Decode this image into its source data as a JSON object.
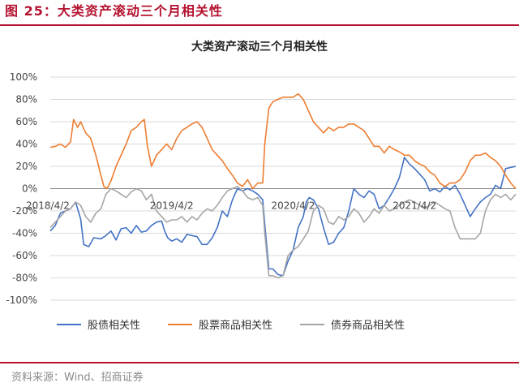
{
  "figure": {
    "title": "图 25：大类资产滚动三个月相关性",
    "source": "资料来源：Wind、招商证券",
    "accent_color": "#b5122f"
  },
  "chart_data": {
    "type": "line",
    "title": "大类资产滚动三个月相关性",
    "xlabel": "",
    "ylabel": "",
    "x_tick_labels": [
      "2018/4/2",
      "2019/4/2",
      "2020/4/2",
      "2021/4/2"
    ],
    "y_tick_labels": [
      "100%",
      "80%",
      "60%",
      "40%",
      "20%",
      "0%",
      "-20%",
      "-40%",
      "-60%",
      "-80%",
      "-100%"
    ],
    "ylim": [
      -1.0,
      1.0
    ],
    "x_unit": "months since 2018/4/2",
    "xlim": [
      0,
      46
    ],
    "grid": "horizontal",
    "legend_position": "bottom",
    "series": [
      {
        "name": "股债相关性",
        "color": "#4472c4",
        "points": [
          [
            0,
            -0.38
          ],
          [
            0.5,
            -0.33
          ],
          [
            1,
            -0.22
          ],
          [
            1.5,
            -0.2
          ],
          [
            2,
            -0.18
          ],
          [
            2.5,
            -0.12
          ],
          [
            3,
            -0.27
          ],
          [
            3.3,
            -0.5
          ],
          [
            3.8,
            -0.52
          ],
          [
            4.3,
            -0.44
          ],
          [
            5,
            -0.45
          ],
          [
            5.5,
            -0.42
          ],
          [
            6,
            -0.38
          ],
          [
            6.5,
            -0.46
          ],
          [
            7,
            -0.36
          ],
          [
            7.5,
            -0.35
          ],
          [
            8,
            -0.4
          ],
          [
            8.5,
            -0.33
          ],
          [
            9,
            -0.39
          ],
          [
            9.5,
            -0.38
          ],
          [
            10,
            -0.33
          ],
          [
            10.5,
            -0.3
          ],
          [
            11,
            -0.29
          ],
          [
            11.3,
            -0.38
          ],
          [
            11.6,
            -0.44
          ],
          [
            12,
            -0.47
          ],
          [
            12.5,
            -0.45
          ],
          [
            13,
            -0.48
          ],
          [
            13.5,
            -0.41
          ],
          [
            14,
            -0.42
          ],
          [
            14.5,
            -0.43
          ],
          [
            15,
            -0.5
          ],
          [
            15.5,
            -0.5
          ],
          [
            16,
            -0.44
          ],
          [
            16.5,
            -0.35
          ],
          [
            17,
            -0.2
          ],
          [
            17.5,
            -0.25
          ],
          [
            18,
            -0.1
          ],
          [
            18.5,
            0.0
          ],
          [
            19,
            -0.02
          ],
          [
            19.5,
            0.0
          ],
          [
            20,
            -0.02
          ],
          [
            20.5,
            -0.05
          ],
          [
            21,
            -0.1
          ],
          [
            21.2,
            -0.32
          ],
          [
            21.6,
            -0.72
          ],
          [
            22,
            -0.72
          ],
          [
            22.5,
            -0.77
          ],
          [
            23,
            -0.78
          ],
          [
            23.5,
            -0.65
          ],
          [
            24,
            -0.55
          ],
          [
            24.5,
            -0.35
          ],
          [
            25,
            -0.25
          ],
          [
            25.3,
            -0.12
          ],
          [
            25.6,
            -0.08
          ],
          [
            26,
            -0.1
          ],
          [
            26.5,
            -0.18
          ],
          [
            27,
            -0.35
          ],
          [
            27.5,
            -0.5
          ],
          [
            28,
            -0.48
          ],
          [
            28.5,
            -0.4
          ],
          [
            29,
            -0.35
          ],
          [
            29.5,
            -0.2
          ],
          [
            30,
            0.0
          ],
          [
            30.5,
            -0.05
          ],
          [
            31,
            -0.08
          ],
          [
            31.5,
            -0.02
          ],
          [
            32,
            -0.05
          ],
          [
            32.5,
            -0.18
          ],
          [
            33,
            -0.15
          ],
          [
            33.5,
            -0.08
          ],
          [
            34,
            0.0
          ],
          [
            34.5,
            0.1
          ],
          [
            35,
            0.28
          ],
          [
            35.5,
            0.22
          ],
          [
            36,
            0.18
          ],
          [
            36.5,
            0.13
          ],
          [
            37,
            0.08
          ],
          [
            37.5,
            -0.02
          ],
          [
            38,
            0.0
          ],
          [
            38.5,
            -0.03
          ],
          [
            39,
            0.02
          ],
          [
            39.5,
            -0.01
          ],
          [
            40,
            0.03
          ],
          [
            40.5,
            -0.05
          ],
          [
            41,
            -0.15
          ],
          [
            41.5,
            -0.25
          ],
          [
            42,
            -0.18
          ],
          [
            42.5,
            -0.12
          ],
          [
            43,
            -0.08
          ],
          [
            43.5,
            -0.05
          ],
          [
            44,
            0.03
          ],
          [
            44.5,
            0.0
          ],
          [
            45,
            0.18
          ],
          [
            45.5,
            0.19
          ],
          [
            46,
            0.2
          ]
        ]
      },
      {
        "name": "股票商品相关性",
        "color": "#ed7d31",
        "points": [
          [
            0,
            0.37
          ],
          [
            0.5,
            0.38
          ],
          [
            1,
            0.4
          ],
          [
            1.5,
            0.37
          ],
          [
            2,
            0.42
          ],
          [
            2.3,
            0.62
          ],
          [
            2.7,
            0.55
          ],
          [
            3,
            0.6
          ],
          [
            3.5,
            0.5
          ],
          [
            4,
            0.45
          ],
          [
            4.5,
            0.3
          ],
          [
            5,
            0.12
          ],
          [
            5.3,
            0.02
          ],
          [
            5.6,
            0.0
          ],
          [
            6,
            0.07
          ],
          [
            6.5,
            0.2
          ],
          [
            7,
            0.3
          ],
          [
            7.5,
            0.4
          ],
          [
            8,
            0.52
          ],
          [
            8.5,
            0.55
          ],
          [
            9,
            0.6
          ],
          [
            9.3,
            0.62
          ],
          [
            9.6,
            0.38
          ],
          [
            10,
            0.2
          ],
          [
            10.5,
            0.3
          ],
          [
            11,
            0.35
          ],
          [
            11.5,
            0.4
          ],
          [
            12,
            0.35
          ],
          [
            12.5,
            0.45
          ],
          [
            13,
            0.52
          ],
          [
            13.5,
            0.55
          ],
          [
            14,
            0.58
          ],
          [
            14.5,
            0.6
          ],
          [
            15,
            0.55
          ],
          [
            15.5,
            0.45
          ],
          [
            16,
            0.35
          ],
          [
            16.5,
            0.3
          ],
          [
            17,
            0.25
          ],
          [
            17.5,
            0.18
          ],
          [
            18,
            0.12
          ],
          [
            18.5,
            0.05
          ],
          [
            19,
            0.02
          ],
          [
            19.5,
            0.08
          ],
          [
            20,
            0.0
          ],
          [
            20.5,
            0.05
          ],
          [
            21,
            0.05
          ],
          [
            21.2,
            0.4
          ],
          [
            21.6,
            0.72
          ],
          [
            22,
            0.78
          ],
          [
            22.5,
            0.8
          ],
          [
            23,
            0.82
          ],
          [
            23.5,
            0.82
          ],
          [
            24,
            0.82
          ],
          [
            24.5,
            0.85
          ],
          [
            25,
            0.8
          ],
          [
            25.5,
            0.7
          ],
          [
            26,
            0.6
          ],
          [
            26.5,
            0.55
          ],
          [
            27,
            0.5
          ],
          [
            27.5,
            0.55
          ],
          [
            28,
            0.52
          ],
          [
            28.5,
            0.55
          ],
          [
            29,
            0.55
          ],
          [
            29.5,
            0.58
          ],
          [
            30,
            0.58
          ],
          [
            30.5,
            0.55
          ],
          [
            31,
            0.52
          ],
          [
            31.5,
            0.45
          ],
          [
            32,
            0.38
          ],
          [
            32.5,
            0.38
          ],
          [
            33,
            0.32
          ],
          [
            33.5,
            0.38
          ],
          [
            34,
            0.35
          ],
          [
            34.5,
            0.33
          ],
          [
            35,
            0.3
          ],
          [
            35.5,
            0.3
          ],
          [
            36,
            0.25
          ],
          [
            36.5,
            0.22
          ],
          [
            37,
            0.2
          ],
          [
            37.5,
            0.15
          ],
          [
            38,
            0.12
          ],
          [
            38.5,
            0.05
          ],
          [
            39,
            0.02
          ],
          [
            39.5,
            0.05
          ],
          [
            40,
            0.05
          ],
          [
            40.5,
            0.08
          ],
          [
            41,
            0.15
          ],
          [
            41.5,
            0.25
          ],
          [
            42,
            0.3
          ],
          [
            42.5,
            0.3
          ],
          [
            43,
            0.32
          ],
          [
            43.5,
            0.28
          ],
          [
            44,
            0.25
          ],
          [
            44.5,
            0.2
          ],
          [
            45,
            0.12
          ],
          [
            45.5,
            0.05
          ],
          [
            46,
            0.0
          ]
        ]
      },
      {
        "name": "债券商品相关性",
        "color": "#a5a5a5",
        "points": [
          [
            0,
            -0.35
          ],
          [
            0.5,
            -0.3
          ],
          [
            1,
            -0.25
          ],
          [
            1.5,
            -0.2
          ],
          [
            2,
            -0.18
          ],
          [
            2.5,
            -0.12
          ],
          [
            3,
            -0.15
          ],
          [
            3.5,
            -0.25
          ],
          [
            4,
            -0.3
          ],
          [
            4.5,
            -0.22
          ],
          [
            5,
            -0.18
          ],
          [
            5.5,
            -0.05
          ],
          [
            6,
            0.0
          ],
          [
            6.5,
            -0.02
          ],
          [
            7,
            -0.05
          ],
          [
            7.5,
            -0.08
          ],
          [
            8,
            -0.03
          ],
          [
            8.5,
            0.0
          ],
          [
            9,
            -0.02
          ],
          [
            9.5,
            -0.1
          ],
          [
            10,
            -0.05
          ],
          [
            10.5,
            -0.2
          ],
          [
            11,
            -0.25
          ],
          [
            11.5,
            -0.3
          ],
          [
            12,
            -0.28
          ],
          [
            12.5,
            -0.28
          ],
          [
            13,
            -0.25
          ],
          [
            13.5,
            -0.3
          ],
          [
            14,
            -0.25
          ],
          [
            14.5,
            -0.28
          ],
          [
            15,
            -0.22
          ],
          [
            15.5,
            -0.18
          ],
          [
            16,
            -0.2
          ],
          [
            16.5,
            -0.15
          ],
          [
            17,
            -0.08
          ],
          [
            17.5,
            -0.02
          ],
          [
            18,
            0.0
          ],
          [
            18.5,
            0.02
          ],
          [
            19,
            -0.02
          ],
          [
            19.5,
            -0.08
          ],
          [
            20,
            -0.1
          ],
          [
            20.5,
            -0.08
          ],
          [
            21,
            -0.15
          ],
          [
            21.2,
            -0.4
          ],
          [
            21.6,
            -0.78
          ],
          [
            22,
            -0.78
          ],
          [
            22.5,
            -0.8
          ],
          [
            23,
            -0.78
          ],
          [
            23.5,
            -0.6
          ],
          [
            24,
            -0.55
          ],
          [
            24.5,
            -0.52
          ],
          [
            25,
            -0.45
          ],
          [
            25.5,
            -0.38
          ],
          [
            26,
            -0.2
          ],
          [
            26.5,
            -0.15
          ],
          [
            27,
            -0.18
          ],
          [
            27.5,
            -0.3
          ],
          [
            28,
            -0.32
          ],
          [
            28.5,
            -0.25
          ],
          [
            29,
            -0.28
          ],
          [
            29.5,
            -0.25
          ],
          [
            30,
            -0.18
          ],
          [
            30.5,
            -0.22
          ],
          [
            31,
            -0.3
          ],
          [
            31.5,
            -0.25
          ],
          [
            32,
            -0.18
          ],
          [
            32.5,
            -0.22
          ],
          [
            33,
            -0.15
          ],
          [
            33.5,
            -0.2
          ],
          [
            34,
            -0.18
          ],
          [
            34.5,
            -0.15
          ],
          [
            35,
            -0.12
          ],
          [
            35.5,
            -0.1
          ],
          [
            36,
            -0.12
          ],
          [
            36.5,
            -0.15
          ],
          [
            37,
            -0.18
          ],
          [
            37.5,
            -0.15
          ],
          [
            38,
            -0.12
          ],
          [
            38.5,
            -0.15
          ],
          [
            39,
            -0.18
          ],
          [
            39.5,
            -0.2
          ],
          [
            40,
            -0.35
          ],
          [
            40.5,
            -0.45
          ],
          [
            41,
            -0.45
          ],
          [
            41.5,
            -0.45
          ],
          [
            42,
            -0.45
          ],
          [
            42.5,
            -0.4
          ],
          [
            43,
            -0.2
          ],
          [
            43.5,
            -0.1
          ],
          [
            44,
            -0.05
          ],
          [
            44.5,
            -0.08
          ],
          [
            45,
            -0.05
          ],
          [
            45.5,
            -0.1
          ],
          [
            46,
            -0.05
          ]
        ]
      }
    ]
  }
}
